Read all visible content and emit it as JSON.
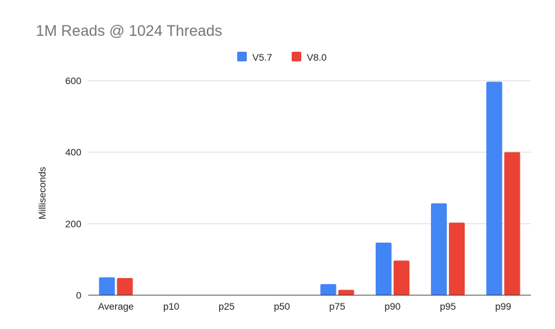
{
  "chart_data": {
    "type": "bar",
    "title": "1M Reads @ 1024 Threads",
    "xlabel": "",
    "ylabel": "Milliseconds",
    "categories": [
      "Average",
      "p10",
      "p25",
      "p50",
      "p75",
      "p90",
      "p95",
      "p99"
    ],
    "series": [
      {
        "name": "V5.7",
        "color": "#4285f4",
        "values": [
          50,
          0,
          0,
          0,
          31,
          147,
          257,
          597
        ]
      },
      {
        "name": "V8.0",
        "color": "#ea4335",
        "values": [
          48,
          0,
          0,
          0,
          15,
          97,
          203,
          400
        ]
      }
    ],
    "ylim": [
      0,
      600
    ],
    "yticks": [
      0,
      200,
      400,
      600
    ],
    "grid": true,
    "legend_position": "top-center"
  }
}
